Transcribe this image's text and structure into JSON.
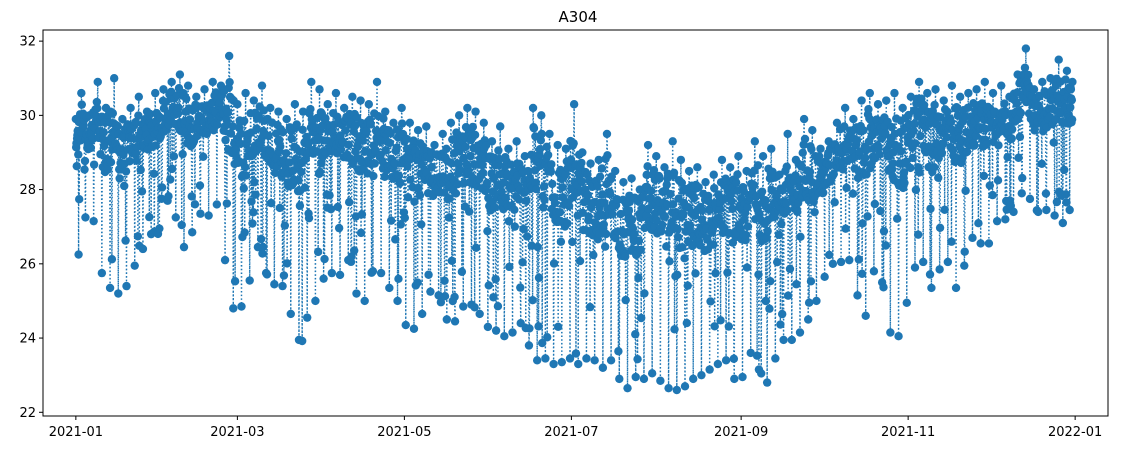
{
  "chart_data": {
    "type": "line",
    "title": "A304",
    "xlabel": "",
    "ylabel": "",
    "x_axis_type": "date",
    "xlim": [
      "2020-12-20",
      "2022-01-13"
    ],
    "ylim": [
      21.9,
      32.3
    ],
    "x_ticks": [
      "2021-01-01",
      "2021-03-01",
      "2021-05-01",
      "2021-07-01",
      "2021-09-01",
      "2021-11-01",
      "2022-01-01"
    ],
    "x_tick_labels": [
      "2021-01",
      "2021-03",
      "2021-05",
      "2021-07",
      "2021-09",
      "2021-11",
      "2022-01"
    ],
    "y_ticks": [
      22,
      24,
      26,
      28,
      30,
      32
    ],
    "y_tick_labels": [
      "22",
      "24",
      "26",
      "28",
      "30",
      "32"
    ],
    "grid": false,
    "legend": false,
    "series": [
      {
        "color": "#1f77b4",
        "line_style": "dotted",
        "marker": "circle",
        "x": [
          "2021-01-01",
          "2021-01-03",
          "2021-01-06",
          "2021-01-09",
          "2021-01-12",
          "2021-01-15",
          "2021-01-18",
          "2021-01-21",
          "2021-01-24",
          "2021-01-27",
          "2021-01-30",
          "2021-02-02",
          "2021-02-05",
          "2021-02-08",
          "2021-02-11",
          "2021-02-14",
          "2021-02-17",
          "2021-02-20",
          "2021-02-23",
          "2021-02-26",
          "2021-03-01",
          "2021-03-04",
          "2021-03-07",
          "2021-03-10",
          "2021-03-13",
          "2021-03-16",
          "2021-03-19",
          "2021-03-22",
          "2021-03-25",
          "2021-03-28",
          "2021-03-31",
          "2021-04-03",
          "2021-04-06",
          "2021-04-09",
          "2021-04-12",
          "2021-04-15",
          "2021-04-18",
          "2021-04-21",
          "2021-04-24",
          "2021-04-27",
          "2021-04-30",
          "2021-05-03",
          "2021-05-06",
          "2021-05-09",
          "2021-05-12",
          "2021-05-15",
          "2021-05-18",
          "2021-05-21",
          "2021-05-24",
          "2021-05-27",
          "2021-05-30",
          "2021-06-02",
          "2021-06-05",
          "2021-06-08",
          "2021-06-11",
          "2021-06-14",
          "2021-06-17",
          "2021-06-20",
          "2021-06-23",
          "2021-06-26",
          "2021-06-29",
          "2021-07-02",
          "2021-07-05",
          "2021-07-08",
          "2021-07-11",
          "2021-07-14",
          "2021-07-17",
          "2021-07-20",
          "2021-07-23",
          "2021-07-26",
          "2021-07-29",
          "2021-08-01",
          "2021-08-04",
          "2021-08-07",
          "2021-08-10",
          "2021-08-13",
          "2021-08-16",
          "2021-08-19",
          "2021-08-22",
          "2021-08-25",
          "2021-08-28",
          "2021-08-31",
          "2021-09-03",
          "2021-09-06",
          "2021-09-09",
          "2021-09-12",
          "2021-09-15",
          "2021-09-18",
          "2021-09-21",
          "2021-09-24",
          "2021-09-27",
          "2021-09-30",
          "2021-10-03",
          "2021-10-06",
          "2021-10-09",
          "2021-10-12",
          "2021-10-15",
          "2021-10-18",
          "2021-10-21",
          "2021-10-24",
          "2021-10-27",
          "2021-10-30",
          "2021-11-02",
          "2021-11-05",
          "2021-11-08",
          "2021-11-11",
          "2021-11-14",
          "2021-11-17",
          "2021-11-20",
          "2021-11-23",
          "2021-11-26",
          "2021-11-29",
          "2021-12-02",
          "2021-12-05",
          "2021-12-08",
          "2021-12-11",
          "2021-12-14",
          "2021-12-17",
          "2021-12-20",
          "2021-12-23",
          "2021-12-26",
          "2021-12-29",
          "2021-12-31"
        ],
        "y_high": [
          29.9,
          30.6,
          30.0,
          30.9,
          30.2,
          31.0,
          29.9,
          30.2,
          30.5,
          30.1,
          30.6,
          30.7,
          30.9,
          31.1,
          30.8,
          30.5,
          30.7,
          30.9,
          30.8,
          31.6,
          30.3,
          30.6,
          30.4,
          30.8,
          30.2,
          30.1,
          29.9,
          30.3,
          30.1,
          30.9,
          30.7,
          30.3,
          30.6,
          30.2,
          30.5,
          30.4,
          30.3,
          30.9,
          30.1,
          29.8,
          30.2,
          29.8,
          29.6,
          29.7,
          29.2,
          29.5,
          29.8,
          30.0,
          30.2,
          30.1,
          29.8,
          29.3,
          29.7,
          29.1,
          29.3,
          28.9,
          30.2,
          30.0,
          29.5,
          29.2,
          29.1,
          30.3,
          29.0,
          28.7,
          28.8,
          29.5,
          28.5,
          28.2,
          28.3,
          28.0,
          29.2,
          28.9,
          28.6,
          29.3,
          28.8,
          28.5,
          28.6,
          28.2,
          28.4,
          28.8,
          28.6,
          28.9,
          28.5,
          29.3,
          28.9,
          29.1,
          28.4,
          29.5,
          28.8,
          29.9,
          29.6,
          29.1,
          29.3,
          29.8,
          30.2,
          29.9,
          30.4,
          30.6,
          30.3,
          30.4,
          30.6,
          30.2,
          30.5,
          30.9,
          30.6,
          30.7,
          30.4,
          30.8,
          30.5,
          30.6,
          30.7,
          30.9,
          30.6,
          30.8,
          30.5,
          31.1,
          31.8,
          30.7,
          30.9,
          31.0,
          31.5,
          31.2,
          30.9
        ],
        "y_low": [
          25.5,
          27.0,
          27.5,
          26.8,
          24.7,
          26.0,
          24.4,
          26.4,
          25.5,
          27.3,
          26.3,
          27.6,
          27.8,
          26.7,
          26.2,
          27.5,
          27.2,
          27.4,
          27.8,
          24.4,
          25.2,
          24.5,
          26.6,
          26.3,
          25.2,
          25.7,
          25.1,
          24.2,
          23.7,
          25.4,
          24.6,
          26.6,
          24.9,
          26.5,
          25.7,
          24.7,
          25.3,
          26.3,
          25.2,
          25.5,
          24.5,
          24.2,
          24.3,
          25.0,
          25.5,
          24.8,
          24.2,
          24.7,
          25.0,
          24.8,
          24.5,
          24.1,
          24.3,
          23.8,
          24.5,
          24.3,
          23.3,
          23.5,
          23.4,
          23.2,
          23.5,
          23.4,
          23.2,
          23.7,
          23.1,
          23.3,
          23.5,
          22.3,
          23.0,
          22.9,
          22.9,
          23.2,
          22.5,
          22.8,
          22.4,
          23.0,
          22.8,
          23.2,
          23.1,
          23.5,
          23.3,
          22.5,
          23.4,
          23.8,
          22.5,
          23.1,
          23.8,
          24.1,
          23.8,
          24.5,
          24.5,
          25.5,
          25.8,
          26.2,
          25.9,
          26.3,
          24.0,
          25.2,
          26.4,
          24.6,
          23.7,
          24.4,
          25.5,
          26.3,
          25.8,
          24.9,
          26.8,
          25.3,
          25.4,
          26.5,
          26.9,
          26.2,
          26.9,
          27.4,
          27.0,
          27.8,
          28.0,
          27.5,
          27.3,
          27.6,
          27.0,
          27.2,
          27.7
        ]
      }
    ]
  }
}
